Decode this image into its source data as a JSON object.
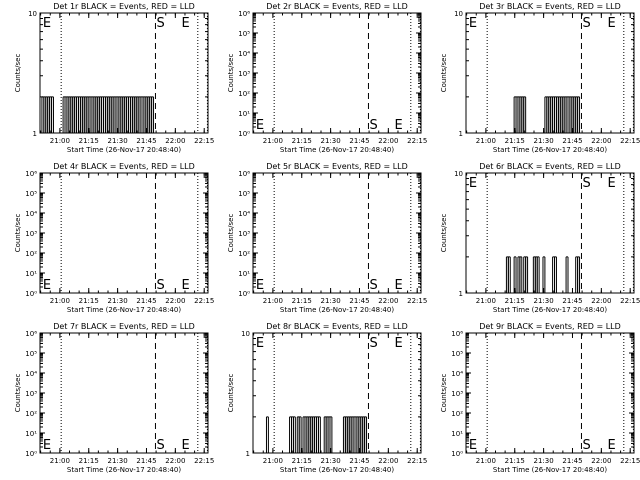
{
  "chart_data": [
    {
      "type": "line",
      "title": "Det 1r BLACK = Events, RED = LLD",
      "xlabel": "Start Time (26-Nov-17 20:48:40)",
      "ylabel": "Counts/sec",
      "yscale": "log",
      "ylim": [
        1,
        10
      ],
      "yticks": [
        "1",
        "10"
      ],
      "xticks": [
        "21:00",
        "21:15",
        "21:30",
        "21:45",
        "22:00",
        "22:15"
      ],
      "xlim_min": [
        1,
        88.3
      ],
      "markers": [
        {
          "text": "E",
          "t": 2,
          "y": "top"
        },
        {
          "text": "S",
          "t": 61,
          "y": "top"
        },
        {
          "text": "E",
          "t": 74,
          "y": "top"
        }
      ],
      "lines": {
        "dotted": [
          12,
          83,
          88
        ],
        "dashed": [
          61
        ]
      },
      "series": [
        {
          "x": [
            2,
            3,
            4,
            5,
            6,
            7,
            13,
            14,
            15,
            16,
            17,
            18,
            19,
            20,
            21,
            22,
            23,
            24,
            25,
            26,
            27,
            28,
            29,
            30,
            31,
            32,
            33,
            34,
            35,
            36,
            37,
            38,
            39,
            40,
            41,
            42,
            43,
            44,
            45,
            46,
            47,
            48,
            49,
            50,
            51,
            52,
            53,
            54,
            55,
            56,
            57,
            58,
            59
          ],
          "y": [
            2,
            2,
            2,
            2,
            2,
            2,
            2,
            2,
            2,
            2,
            2,
            2,
            2,
            2,
            2,
            2,
            2,
            2,
            2,
            2,
            2,
            2,
            2,
            2,
            2,
            2,
            2,
            2,
            2,
            2,
            2,
            2,
            2,
            2,
            2,
            2,
            2,
            2,
            2,
            2,
            2,
            2,
            2,
            2,
            2,
            2,
            2,
            2,
            2,
            2,
            2,
            2,
            2
          ]
        }
      ]
    },
    {
      "type": "line",
      "title": "Det 2r BLACK = Events, RED = LLD",
      "xlabel": "Start Time (26-Nov-17 20:48:40)",
      "ylabel": "Counts/sec",
      "yscale": "log",
      "ylim": [
        1,
        1000000
      ],
      "yticks": [
        "10⁰",
        "10¹",
        "10²",
        "10³",
        "10⁴",
        "10⁵",
        "10⁶"
      ],
      "xticks": [
        "21:00",
        "21:15",
        "21:30",
        "21:45",
        "22:00",
        "22:15"
      ],
      "xlim_min": [
        1,
        88.3
      ],
      "markers": [
        {
          "text": "E",
          "t": 2,
          "y": "bottom"
        },
        {
          "text": "S",
          "t": 61,
          "y": "bottom"
        },
        {
          "text": "E",
          "t": 74,
          "y": "bottom"
        }
      ],
      "lines": {
        "dotted": [
          12,
          83,
          88
        ],
        "dashed": [
          61
        ]
      },
      "series": []
    },
    {
      "type": "line",
      "title": "Det 3r BLACK = Events, RED = LLD",
      "xlabel": "Start Time (26-Nov-17 20:48:40)",
      "ylabel": "Counts/sec",
      "yscale": "log",
      "ylim": [
        1,
        10
      ],
      "yticks": [
        "1",
        "10"
      ],
      "xticks": [
        "21:00",
        "21:15",
        "21:30",
        "21:45",
        "22:00",
        "22:15"
      ],
      "xlim_min": [
        1,
        88.3
      ],
      "markers": [
        {
          "text": "E",
          "t": 2,
          "y": "top"
        },
        {
          "text": "S",
          "t": 61,
          "y": "top"
        },
        {
          "text": "E",
          "t": 74,
          "y": "top"
        }
      ],
      "lines": {
        "dotted": [
          12,
          83,
          88
        ],
        "dashed": [
          61
        ]
      },
      "series": [
        {
          "x": [
            26,
            27,
            28,
            29,
            30,
            31,
            42,
            43,
            44,
            45,
            46,
            47,
            48,
            49,
            50,
            51,
            52,
            53,
            54,
            55,
            56,
            57,
            58,
            59
          ],
          "y": [
            2,
            2,
            2,
            2,
            2,
            2,
            2,
            2,
            2,
            2,
            2,
            2,
            2,
            2,
            2,
            2,
            2,
            2,
            2,
            2,
            2,
            2,
            2,
            2
          ]
        }
      ]
    },
    {
      "type": "line",
      "title": "Det 4r BLACK = Events, RED = LLD",
      "xlabel": "Start Time (26-Nov-17 20:48:40)",
      "ylabel": "Counts/sec",
      "yscale": "log",
      "ylim": [
        1,
        1000000
      ],
      "yticks": [
        "10⁰",
        "10¹",
        "10²",
        "10³",
        "10⁴",
        "10⁵",
        "10⁶"
      ],
      "xticks": [
        "21:00",
        "21:15",
        "21:30",
        "21:45",
        "22:00",
        "22:15"
      ],
      "xlim_min": [
        1,
        88.3
      ],
      "markers": [
        {
          "text": "E",
          "t": 2,
          "y": "bottom"
        },
        {
          "text": "S",
          "t": 61,
          "y": "bottom"
        },
        {
          "text": "E",
          "t": 74,
          "y": "bottom"
        }
      ],
      "lines": {
        "dotted": [
          12,
          83,
          88
        ],
        "dashed": [
          61
        ]
      },
      "series": []
    },
    {
      "type": "line",
      "title": "Det 5r BLACK = Events, RED = LLD",
      "xlabel": "Start Time (26-Nov-17 20:48:40)",
      "ylabel": "Counts/sec",
      "yscale": "log",
      "ylim": [
        1,
        1000000
      ],
      "yticks": [
        "10⁰",
        "10¹",
        "10²",
        "10³",
        "10⁴",
        "10⁵",
        "10⁶"
      ],
      "xticks": [
        "21:00",
        "21:15",
        "21:30",
        "21:45",
        "22:00",
        "22:15"
      ],
      "xlim_min": [
        1,
        88.3
      ],
      "markers": [
        {
          "text": "E",
          "t": 2,
          "y": "bottom"
        },
        {
          "text": "S",
          "t": 61,
          "y": "bottom"
        },
        {
          "text": "E",
          "t": 74,
          "y": "bottom"
        }
      ],
      "lines": {
        "dotted": [
          12,
          83,
          88
        ],
        "dashed": [
          61
        ]
      },
      "series": []
    },
    {
      "type": "line",
      "title": "Det 6r BLACK = Events, RED = LLD",
      "xlabel": "Start Time (26-Nov-17 20:48:40)",
      "ylabel": "Counts/sec",
      "yscale": "log",
      "ylim": [
        1,
        10
      ],
      "yticks": [
        "1",
        "10"
      ],
      "xticks": [
        "21:00",
        "21:15",
        "21:30",
        "21:45",
        "22:00",
        "22:15"
      ],
      "xlim_min": [
        1,
        88.3
      ],
      "markers": [
        {
          "text": "E",
          "t": 2,
          "y": "top"
        },
        {
          "text": "S",
          "t": 61,
          "y": "top"
        },
        {
          "text": "E",
          "t": 74,
          "y": "top"
        }
      ],
      "lines": {
        "dotted": [
          12,
          83,
          88
        ],
        "dashed": [
          61
        ]
      },
      "series": [
        {
          "x": [
            22,
            23,
            26,
            28,
            29,
            31,
            32,
            36,
            37,
            38,
            41,
            46,
            47,
            53,
            58,
            59
          ],
          "y": [
            2,
            2,
            2,
            2,
            2,
            2,
            2,
            2,
            2,
            2,
            2,
            2,
            2,
            2,
            2,
            2
          ]
        }
      ]
    },
    {
      "type": "line",
      "title": "Det 7r BLACK = Events, RED = LLD",
      "xlabel": "Start Time (26-Nov-17 20:48:40)",
      "ylabel": "Counts/sec",
      "yscale": "log",
      "ylim": [
        1,
        1000000
      ],
      "yticks": [
        "10⁰",
        "10¹",
        "10²",
        "10³",
        "10⁴",
        "10⁵",
        "10⁶"
      ],
      "xticks": [
        "21:00",
        "21:15",
        "21:30",
        "21:45",
        "22:00",
        "22:15"
      ],
      "xlim_min": [
        1,
        88.3
      ],
      "markers": [
        {
          "text": "E",
          "t": 2,
          "y": "bottom"
        },
        {
          "text": "S",
          "t": 61,
          "y": "bottom"
        },
        {
          "text": "E",
          "t": 74,
          "y": "bottom"
        }
      ],
      "lines": {
        "dotted": [
          12,
          83,
          88
        ],
        "dashed": [
          61
        ]
      },
      "series": []
    },
    {
      "type": "line",
      "title": "Det 8r BLACK = Events, RED = LLD",
      "xlabel": "Start Time (26-Nov-17 20:48:40)",
      "ylabel": "Counts/sec",
      "yscale": "log",
      "ylim": [
        1,
        10
      ],
      "yticks": [
        "1",
        "10"
      ],
      "xticks": [
        "21:00",
        "21:15",
        "21:30",
        "21:45",
        "22:00",
        "22:15"
      ],
      "xlim_min": [
        1,
        88.3
      ],
      "markers": [
        {
          "text": "E",
          "t": 2,
          "y": "top"
        },
        {
          "text": "S",
          "t": 61,
          "y": "top"
        },
        {
          "text": "E",
          "t": 74,
          "y": "top"
        }
      ],
      "lines": {
        "dotted": [
          12,
          83,
          88
        ],
        "dashed": [
          61
        ]
      },
      "series": [
        {
          "x": [
            8,
            20,
            21,
            22,
            24,
            25,
            27,
            28,
            29,
            30,
            31,
            32,
            33,
            34,
            35,
            38,
            39,
            40,
            41,
            48,
            49,
            50,
            51,
            52,
            53,
            54,
            55,
            56,
            57,
            58,
            59
          ],
          "y": [
            2,
            2,
            2,
            2,
            2,
            2,
            2,
            2,
            2,
            2,
            2,
            2,
            2,
            2,
            2,
            2,
            2,
            2,
            2,
            2,
            2,
            2,
            2,
            2,
            2,
            2,
            2,
            2,
            2,
            2,
            2
          ]
        }
      ]
    },
    {
      "type": "line",
      "title": "Det 9r BLACK = Events, RED = LLD",
      "xlabel": "Start Time (26-Nov-17 20:48:40)",
      "ylabel": "Counts/sec",
      "yscale": "log",
      "ylim": [
        1,
        1000000
      ],
      "yticks": [
        "10⁰",
        "10¹",
        "10²",
        "10³",
        "10⁴",
        "10⁵",
        "10⁶"
      ],
      "xticks": [
        "21:00",
        "21:15",
        "21:30",
        "21:45",
        "22:00",
        "22:15"
      ],
      "xlim_min": [
        1,
        88.3
      ],
      "markers": [
        {
          "text": "E",
          "t": 2,
          "y": "bottom"
        },
        {
          "text": "S",
          "t": 61,
          "y": "bottom"
        },
        {
          "text": "E",
          "t": 74,
          "y": "bottom"
        }
      ],
      "lines": {
        "dotted": [
          12,
          83,
          88
        ],
        "dashed": [
          61
        ]
      },
      "series": []
    }
  ]
}
